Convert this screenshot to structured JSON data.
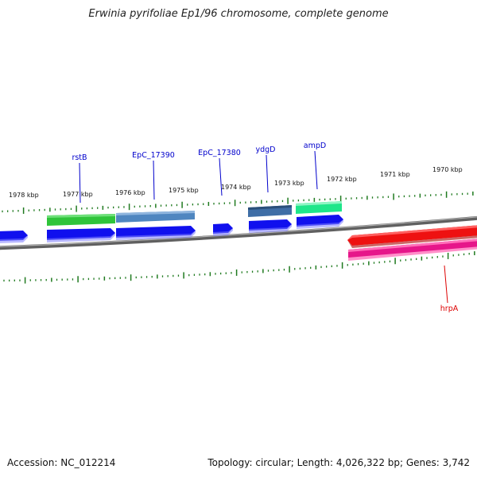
{
  "title": "Erwinia pyrifoliae Ep1/96 chromosome, complete genome",
  "footer": {
    "accession": "Accession: NC_012214",
    "summary": "Topology: circular; Length: 4,026,322 bp; Genes: 3,742"
  },
  "colors": {
    "tick": "#1f7a1f",
    "backbone": "#808080",
    "cds": "#1010ee",
    "label_blue": "#0000cc",
    "label_red": "#dd0000"
  },
  "kbp_labels": [
    "1978 kbp",
    "1977 kbp",
    "1976 kbp",
    "1975 kbp",
    "1974 kbp",
    "1973 kbp",
    "1972 kbp",
    "1971 kbp",
    "1970 kbp"
  ],
  "genes": [
    {
      "name": "rstB",
      "color": "#2fc43a"
    },
    {
      "name": "EpC_17390",
      "color": "#4f86c0"
    },
    {
      "name": "EpC_17380",
      "color": "#1010ee"
    },
    {
      "name": "ydgD",
      "color": "#3f6ea6"
    },
    {
      "name": "ampD",
      "color": "#1ee68a"
    },
    {
      "name": "hrpA",
      "color": "#ee1111"
    }
  ]
}
